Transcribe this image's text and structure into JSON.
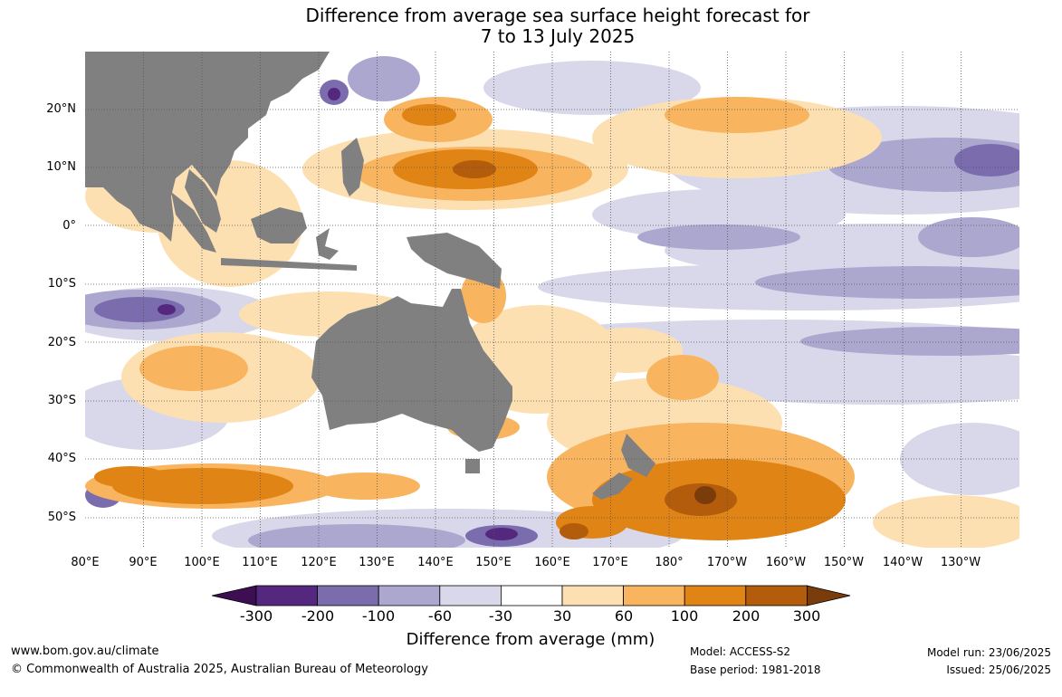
{
  "title": {
    "line1": "Difference from average sea surface height forecast for",
    "line2": "7 to 13 July 2025"
  },
  "map": {
    "lat_labels": [
      "20°N",
      "10°N",
      "0°",
      "10°S",
      "20°S",
      "30°S",
      "40°S",
      "50°S"
    ],
    "lon_labels": [
      "80°E",
      "90°E",
      "100°E",
      "110°E",
      "120°E",
      "130°E",
      "140°E",
      "150°E",
      "160°E",
      "170°E",
      "180°",
      "170°W",
      "160°W",
      "150°W",
      "140°W",
      "130°W"
    ],
    "land_color": "#808080",
    "grid": "dotted"
  },
  "legend": {
    "ticks": [
      "-300",
      "-200",
      "-100",
      "-60",
      "-30",
      "30",
      "60",
      "100",
      "200",
      "300"
    ],
    "colors": [
      "#3d0f52",
      "#54287e",
      "#7b6cad",
      "#aca7cf",
      "#d8d8ea",
      "#ffffff",
      "#fde0b2",
      "#f9b45f",
      "#e08416",
      "#b35c0c",
      "#7b3c0c"
    ],
    "label": "Difference from average (mm)"
  },
  "footer": {
    "website": "www.bom.gov.au/climate",
    "copyright": "© Commonwealth of Australia 2025, Australian Bureau of Meteorology",
    "model": "Model: ACCESS-S2",
    "base_period": "Base period: 1981-2018",
    "model_run": "Model run: 23/06/2025",
    "issued": "Issued: 25/06/2025"
  }
}
